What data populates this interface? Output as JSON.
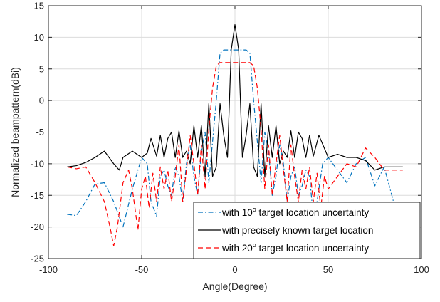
{
  "chart_data": {
    "type": "line",
    "xlabel": "Angle(Degree)",
    "ylabel": "Normalized beampattern(dBi)",
    "xlim": [
      -100,
      100
    ],
    "ylim": [
      -25,
      15
    ],
    "xticks": [
      -100,
      -50,
      0,
      50,
      100
    ],
    "yticks": [
      -25,
      -20,
      -15,
      -10,
      -5,
      0,
      5,
      10,
      15
    ],
    "grid": true,
    "legend_position": "bottom-right",
    "series": [
      {
        "name": "with 10° target location uncertainty",
        "legend_main": "with 10",
        "legend_sup": "o",
        "legend_tail": " target location uncertainty",
        "color": "#0072BD",
        "dash": "dashdot",
        "x": [
          -90,
          -85,
          -80,
          -75,
          -70,
          -65,
          -60,
          -55,
          -50,
          -47,
          -45,
          -42,
          -40,
          -38,
          -36,
          -34,
          -32,
          -30,
          -28,
          -26,
          -24,
          -22,
          -20,
          -18,
          -16,
          -14,
          -12,
          -10,
          -8,
          -6,
          -4,
          -2,
          0,
          2,
          4,
          6,
          8,
          10,
          12,
          14,
          16,
          18,
          20,
          22,
          24,
          26,
          28,
          30,
          32,
          34,
          36,
          38,
          40,
          42,
          44,
          47,
          50,
          55,
          60,
          65,
          70,
          75,
          80,
          85,
          90
        ],
        "y": [
          -18,
          -18.2,
          -16,
          -13.2,
          -13,
          -16,
          -20,
          -14,
          -9,
          -10,
          -16,
          -18.3,
          -12,
          -11,
          -13.5,
          -15,
          -10.5,
          -12,
          -16,
          -10,
          -7,
          -12,
          -15,
          -8,
          -5,
          -13,
          -6.5,
          0,
          7.5,
          8,
          8,
          8,
          8,
          8,
          8,
          8,
          7.5,
          0,
          -6.5,
          -13,
          -5,
          -8,
          -15,
          -12,
          -7,
          -10,
          -16,
          -12,
          -10.5,
          -15,
          -13.5,
          -11,
          -12,
          -18.3,
          -16,
          -10,
          -9,
          -11,
          -13,
          -10,
          -9,
          -13.5,
          -10.5,
          -16,
          -18
        ]
      },
      {
        "name": "with precisely known target location",
        "legend_main": "with precisely known target location",
        "legend_sup": "",
        "legend_tail": "",
        "color": "#000000",
        "dash": "solid",
        "x": [
          -90,
          -85,
          -80,
          -75,
          -70,
          -65,
          -62,
          -60,
          -55,
          -50,
          -47,
          -45,
          -42,
          -40,
          -38,
          -36,
          -34,
          -32,
          -30,
          -28,
          -26,
          -24,
          -22,
          -20,
          -18,
          -16,
          -14,
          -12,
          -10,
          -8,
          -6,
          -4,
          -2,
          0,
          2,
          4,
          6,
          8,
          10,
          12,
          14,
          16,
          18,
          20,
          22,
          24,
          26,
          28,
          30,
          32,
          34,
          36,
          38,
          40,
          42,
          45,
          50,
          55,
          60,
          65,
          70,
          75,
          80,
          85,
          90
        ],
        "y": [
          -10.5,
          -10.3,
          -9.8,
          -9,
          -8,
          -10,
          -11,
          -9,
          -8,
          -9,
          -8.3,
          -6,
          -8.8,
          -5.5,
          -9,
          -6,
          -5,
          -9,
          -4.8,
          -9,
          -8,
          -10,
          -4,
          -9,
          -4,
          -12,
          -0.5,
          -12,
          -10.5,
          -0.5,
          -5.5,
          -9,
          8,
          12,
          8,
          -9,
          -5.5,
          -0.5,
          -10.5,
          -12,
          -0.5,
          -12,
          -4,
          -9,
          -4,
          -10,
          -8,
          -9,
          -4.8,
          -9,
          -5,
          -6,
          -9,
          -5.5,
          -8.8,
          -5.5,
          -9,
          -8.5,
          -9,
          -9,
          -9.5,
          -11,
          -10.5,
          -10.5,
          -10.5
        ]
      },
      {
        "name": "with 20° target location uncertainty",
        "legend_main": "with 20",
        "legend_sup": "o",
        "legend_tail": " target location uncertainty",
        "color": "#FF0000",
        "dash": "dashed",
        "x": [
          -90,
          -85,
          -80,
          -75,
          -70,
          -67,
          -65,
          -63,
          -60,
          -57,
          -55,
          -52,
          -50,
          -48,
          -46,
          -44,
          -42,
          -40,
          -38,
          -36,
          -34,
          -32,
          -30,
          -28,
          -26,
          -24,
          -22,
          -20,
          -18,
          -16,
          -14,
          -12,
          -10,
          -8,
          -6,
          -4,
          -2,
          0,
          2,
          4,
          6,
          8,
          10,
          12,
          14,
          16,
          18,
          20,
          22,
          24,
          26,
          28,
          30,
          32,
          34,
          36,
          38,
          40,
          42,
          44,
          46,
          48,
          50,
          55,
          60,
          65,
          70,
          75,
          80,
          85,
          90
        ],
        "y": [
          -10.5,
          -10.8,
          -10.5,
          -13,
          -16,
          -20,
          -23,
          -20,
          -13,
          -11,
          -14,
          -20.5,
          -14,
          -12,
          -17,
          -11.5,
          -16,
          -10.5,
          -14,
          -11,
          -16,
          -12,
          -7,
          -16,
          -11,
          -5.5,
          -10,
          -15,
          -7,
          -14,
          -4.5,
          2,
          5.5,
          6,
          6,
          6,
          6,
          6,
          6,
          6,
          6,
          6,
          5.5,
          2,
          -4.5,
          -14,
          -7,
          -15,
          -10,
          -5.5,
          -11,
          -16,
          -7,
          -12,
          -16,
          -11,
          -14,
          -10.5,
          -16,
          -11.5,
          -17,
          -12,
          -14,
          -12,
          -10,
          -10.5,
          -7.5,
          -9,
          -11,
          -11,
          -11
        ]
      }
    ]
  }
}
